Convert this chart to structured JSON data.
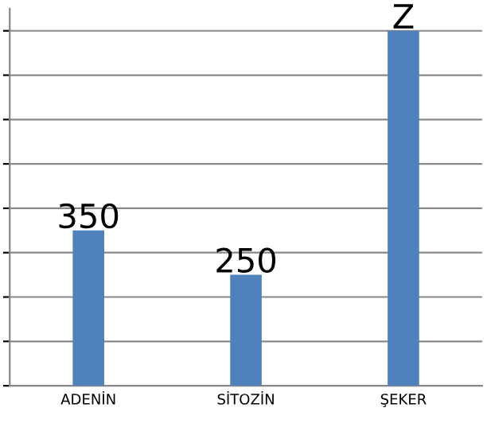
{
  "chart_data": {
    "type": "bar",
    "categories": [
      "ADENİN",
      "SİTOZİN",
      "ŞEKER"
    ],
    "values": [
      350,
      250,
      800
    ],
    "value_labels": [
      "350",
      "250",
      "Z"
    ],
    "color": "#4f81bd",
    "ylim": [
      0,
      850
    ],
    "yticks": [
      {
        "value": 0,
        "label": null
      },
      {
        "value": 100,
        "label": null
      },
      {
        "value": 200,
        "label": null
      },
      {
        "value": 300,
        "label": null
      },
      {
        "value": 400,
        "label": null
      },
      {
        "value": 500,
        "label": null
      },
      {
        "value": 600,
        "label": null
      },
      {
        "value": 700,
        "label": null
      },
      {
        "value": 800,
        "label": null
      }
    ],
    "grid": "y",
    "legend": false
  }
}
